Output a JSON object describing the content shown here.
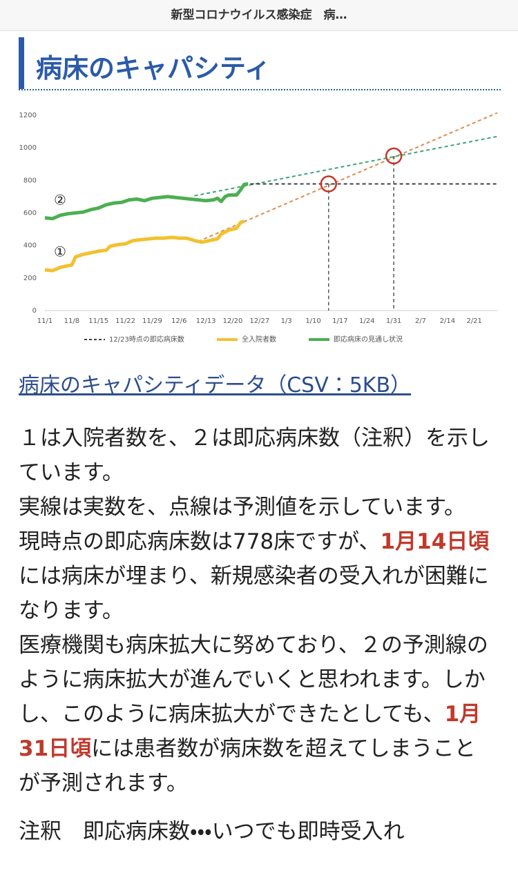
{
  "header": {
    "title": "新型コロナウイルス感染症　病…"
  },
  "heading": "病床のキャパシティ",
  "chart_data": {
    "type": "line",
    "xlim": [
      0,
      118
    ],
    "xticks": [
      {
        "value": 0,
        "label": "11/1"
      },
      {
        "value": 7,
        "label": "11/8"
      },
      {
        "value": 14,
        "label": "11/15"
      },
      {
        "value": 21,
        "label": "11/22"
      },
      {
        "value": 28,
        "label": "11/29"
      },
      {
        "value": 35,
        "label": "12/6"
      },
      {
        "value": 42,
        "label": "12/13"
      },
      {
        "value": 49,
        "label": "12/20"
      },
      {
        "value": 56,
        "label": "12/27"
      },
      {
        "value": 63,
        "label": "1/3"
      },
      {
        "value": 70,
        "label": "1/10"
      },
      {
        "value": 77,
        "label": "1/17"
      },
      {
        "value": 84,
        "label": "1/24"
      },
      {
        "value": 91,
        "label": "1/31"
      },
      {
        "value": 98,
        "label": "2/7"
      },
      {
        "value": 105,
        "label": "2/14"
      },
      {
        "value": 112,
        "label": "2/21"
      }
    ],
    "ylim": [
      0,
      1200
    ],
    "yticks": [
      0,
      200,
      400,
      600,
      800,
      1000,
      1200
    ],
    "grid": false,
    "legend": "bottom",
    "series": [
      {
        "name": "12/23時点の即応病床数",
        "color": "#3a3f4a",
        "dashed": true,
        "x": [
          52,
          118
        ],
        "values": [
          778,
          778
        ]
      },
      {
        "name": "全入院者数",
        "color": "#f2c12e",
        "dashed": false,
        "x": [
          0,
          2,
          4,
          6,
          7,
          8,
          10,
          12,
          14,
          16,
          17,
          19,
          21,
          23,
          25,
          27,
          29,
          31,
          33,
          35,
          37,
          39,
          41,
          43,
          45,
          46,
          48,
          50,
          51,
          52
        ],
        "values": [
          250,
          245,
          265,
          275,
          280,
          330,
          345,
          355,
          365,
          370,
          395,
          405,
          410,
          430,
          435,
          440,
          445,
          445,
          450,
          445,
          445,
          430,
          420,
          430,
          440,
          470,
          495,
          505,
          540,
          550
        ]
      },
      {
        "name": "即応病床の見通し状況",
        "color": "#4caf50",
        "dashed": false,
        "x": [
          0,
          2,
          4,
          6,
          8,
          10,
          12,
          14,
          16,
          18,
          20,
          22,
          24,
          26,
          28,
          30,
          32,
          34,
          36,
          38,
          40,
          42,
          44,
          45,
          46,
          47,
          48,
          50,
          51,
          52,
          53
        ],
        "values": [
          570,
          565,
          585,
          595,
          600,
          605,
          620,
          630,
          650,
          660,
          665,
          680,
          685,
          675,
          690,
          695,
          700,
          695,
          690,
          685,
          680,
          675,
          680,
          690,
          670,
          700,
          710,
          710,
          740,
          775,
          778
        ]
      }
    ],
    "projections": [
      {
        "color": "#e08a4a",
        "x": [
          40,
          118
        ],
        "values": [
          425,
          1215
        ]
      },
      {
        "color": "#3aa676",
        "x": [
          39,
          118
        ],
        "values": [
          705,
          1070
        ]
      }
    ],
    "markers": [
      {
        "x": 74,
        "y": 778
      },
      {
        "x": 91,
        "y": 950
      }
    ],
    "annotations": [
      "②",
      "①"
    ]
  },
  "link": "病床のキャパシティデータ（CSV：5KB）",
  "paragraphs": [
    [
      {
        "text": "１は入院者数を、２は即応病床数（注釈）を示しています。"
      }
    ],
    [
      {
        "text": "実線は実数を、点線は予測値を示しています。"
      }
    ],
    [
      {
        "text": "現時点の即応病床数は778床ですが、"
      },
      {
        "text": "1月14日頃",
        "emphasis": true
      },
      {
        "text": "には病床が埋まり、新規感染者の受入れが困難になります。"
      }
    ],
    [
      {
        "text": "医療機関も病床拡大に努めており、２の予測線のように病床拡大が進んでいくと思われます。しかし、このように病床拡大ができたとしても、"
      },
      {
        "text": "1月31日頃",
        "emphasis": true
      },
      {
        "text": "には患者数が病床数を超えてしまうことが予測されます。"
      }
    ]
  ],
  "note": "注釈　即応病床数・・・いつでも即時受入れ"
}
